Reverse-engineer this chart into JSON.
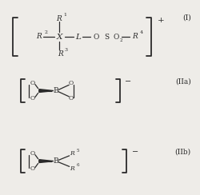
{
  "bg_color": "#eeece8",
  "text_color": "#2a2a2a",
  "fig_width": 2.5,
  "fig_height": 2.44,
  "dpi": 100,
  "label_I": "(I)",
  "label_IIa": "(IIa)",
  "label_IIb": "(IIb)"
}
